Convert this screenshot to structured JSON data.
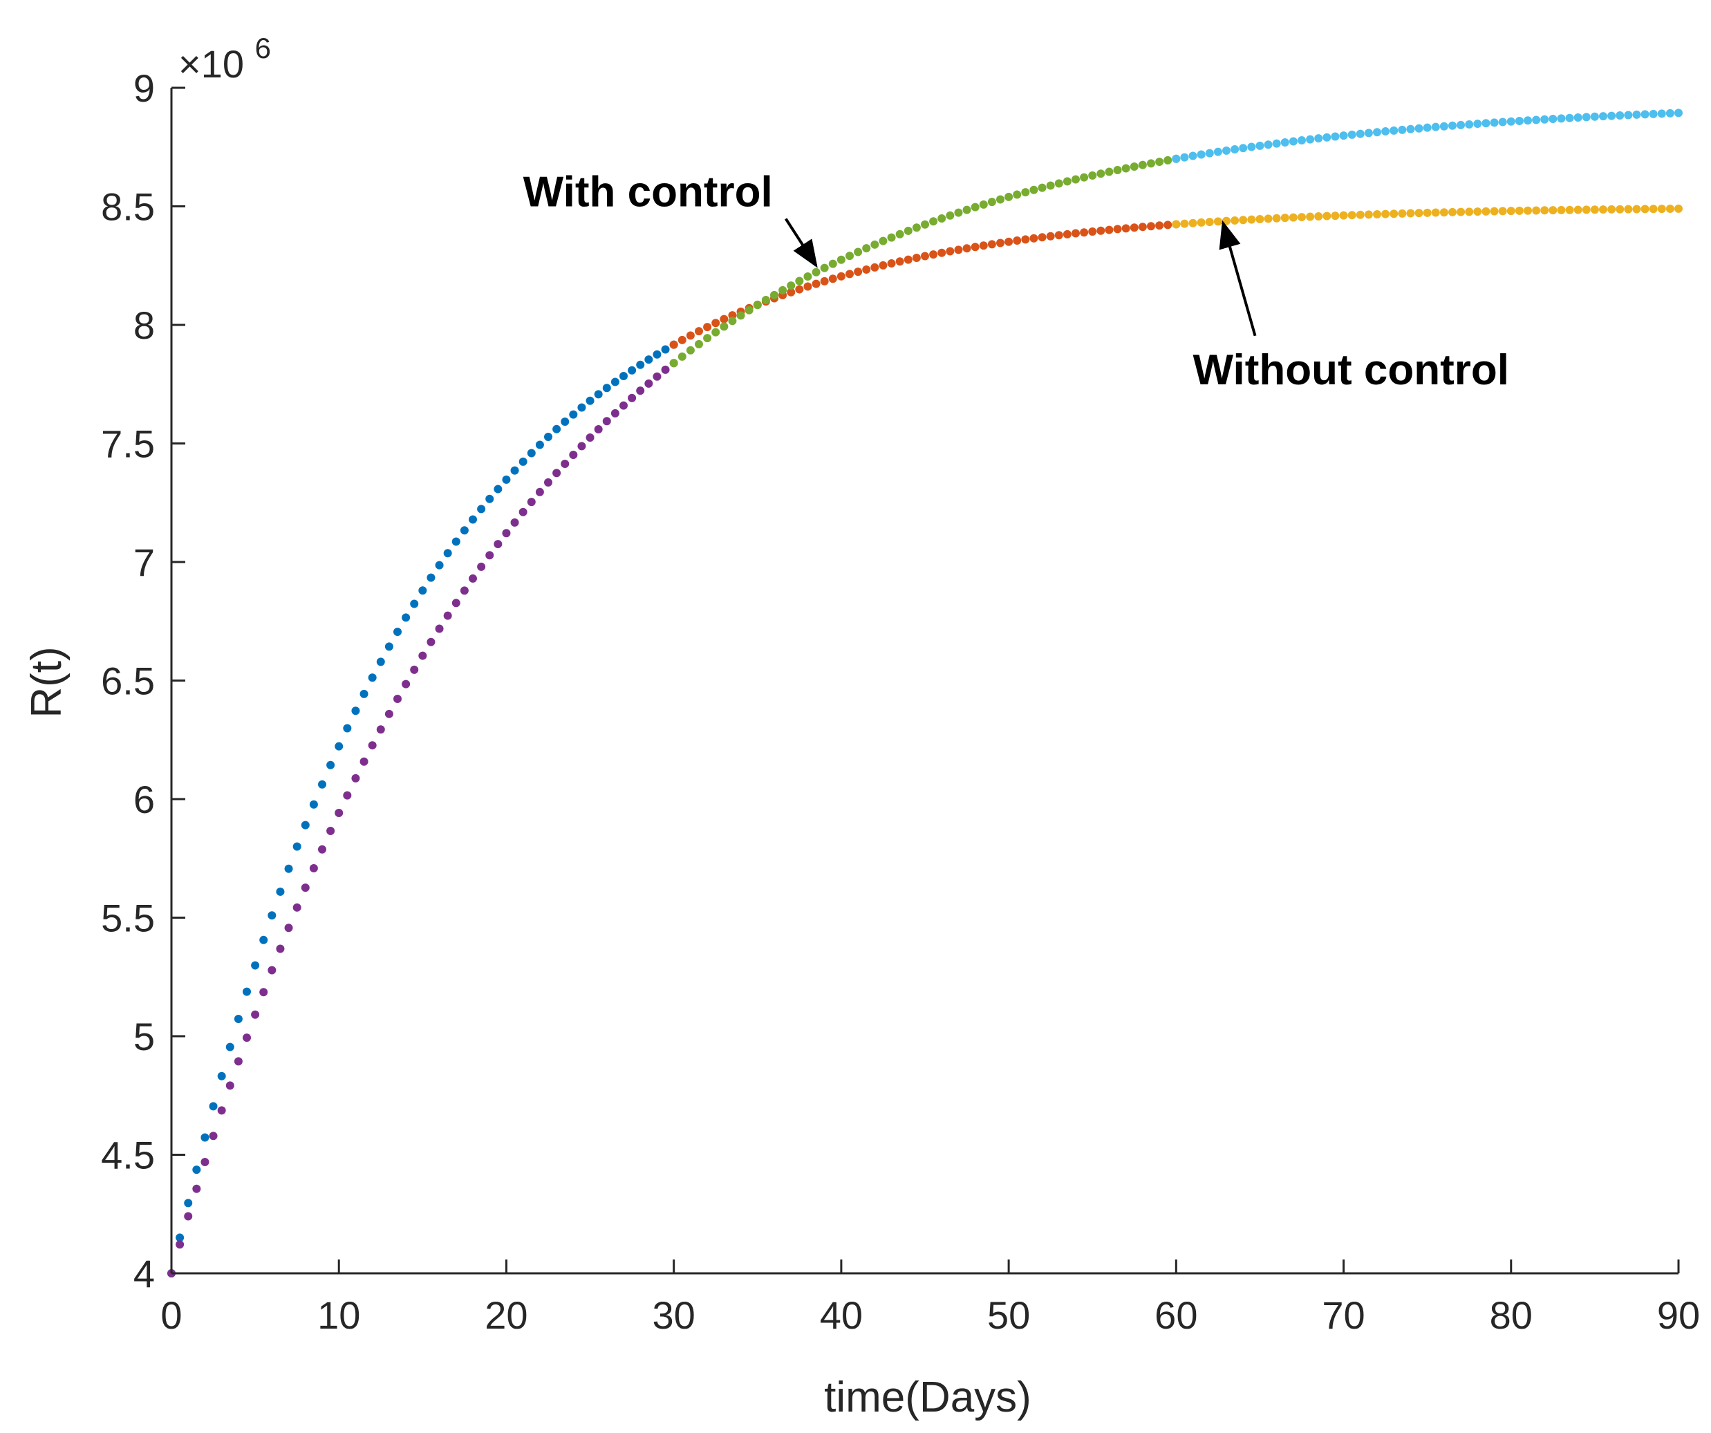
{
  "chart_data": {
    "type": "scatter",
    "title": "",
    "xlabel": "time(Days)",
    "ylabel": "R(t)",
    "xlim": [
      0,
      90
    ],
    "ylim": [
      4000000,
      9000000
    ],
    "xticks": [
      0,
      10,
      20,
      30,
      40,
      50,
      60,
      70,
      80,
      90
    ],
    "yticks": [
      4000000,
      4500000,
      5000000,
      5500000,
      6000000,
      6500000,
      7000000,
      7500000,
      8000000,
      8500000,
      9000000
    ],
    "xtick_labels": [
      "0",
      "10",
      "20",
      "30",
      "40",
      "50",
      "60",
      "70",
      "80",
      "90"
    ],
    "ytick_labels": [
      "4",
      "4.5",
      "5",
      "5.5",
      "6",
      "6.5",
      "7",
      "7.5",
      "8",
      "8.5",
      "9"
    ],
    "y_exponent_label": "×10",
    "y_exponent_power": "6",
    "grid": false,
    "series": [
      {
        "name": "Without control (days 0-30)",
        "color": "#0072BD",
        "x_start": 0,
        "x_end": 30,
        "y_start": 4000000,
        "y_end": 7700000,
        "y_inf": 8500000,
        "rate": 0.0681,
        "step": 0.5
      },
      {
        "name": "Without control (days 30-60)",
        "color": "#D95319",
        "x_start": 30,
        "x_end": 60,
        "y_start": 7700000,
        "y_end": 8390000,
        "y_inf": 8500000,
        "rate": 0.0681,
        "step": 0.5
      },
      {
        "name": "Without control (days 60-90)",
        "color": "#EDB120",
        "x_start": 60,
        "x_end": 90,
        "y_start": 8390000,
        "y_end": 8480000,
        "y_inf": 8500000,
        "rate": 0.0681,
        "step": 0.5
      },
      {
        "name": "With control (days 0-30)",
        "color": "#7E2F8E",
        "x_start": 0,
        "x_end": 30,
        "y_start": 4000000,
        "y_end": 7800000,
        "y_inf": 8950000,
        "rate": 0.0498,
        "step": 0.5
      },
      {
        "name": "With control (days 30-60)",
        "color": "#77AC30",
        "x_start": 30,
        "x_end": 60,
        "y_start": 7800000,
        "y_end": 8700000,
        "y_inf": 8950000,
        "rate": 0.0498,
        "step": 0.5
      },
      {
        "name": "With control (days 60-90)",
        "color": "#4DBEEE",
        "x_start": 60,
        "x_end": 90,
        "y_start": 8700000,
        "y_end": 8900000,
        "y_inf": 8950000,
        "rate": 0.0498,
        "step": 0.5
      }
    ],
    "annotations": [
      {
        "text": "With control",
        "text_x": 21,
        "text_y": 8500000,
        "arrow_tip_x": 38.5,
        "arrow_tip_y": 8250000
      },
      {
        "text": "Without control",
        "text_x": 61,
        "text_y": 7750000,
        "arrow_tip_x": 62.8,
        "arrow_tip_y": 8430000
      }
    ]
  }
}
